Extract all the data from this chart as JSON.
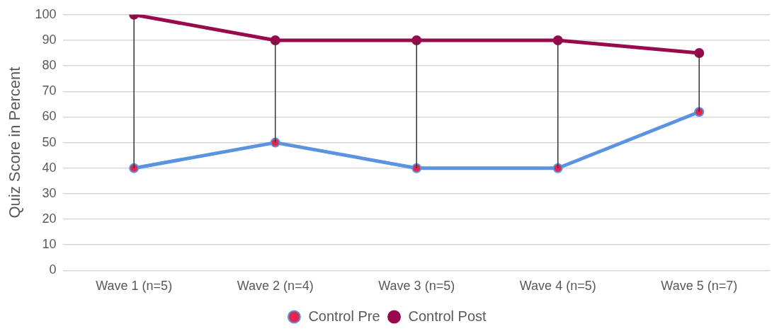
{
  "chart_data": {
    "type": "line",
    "ylabel": "Quiz Score in Percent",
    "categories": [
      "Wave 1 (n=5)",
      "Wave 2 (n=4)",
      "Wave 3 (n=5)",
      "Wave 4 (n=5)",
      "Wave 5 (n=7)"
    ],
    "series": [
      {
        "name": "Control Pre",
        "color": "#5b93e0",
        "values": [
          40,
          50,
          40,
          40,
          62
        ]
      },
      {
        "name": "Control Post",
        "color": "#990a4c",
        "values": [
          100,
          90,
          90,
          90,
          85
        ],
        "errors": [
          [
            40,
            100
          ],
          [
            50,
            90
          ],
          [
            40,
            90
          ],
          [
            40,
            90
          ],
          [
            62,
            85
          ]
        ]
      }
    ],
    "ylim": [
      0,
      100
    ],
    "yticks": [
      0,
      10,
      20,
      30,
      40,
      50,
      60,
      70,
      80,
      90,
      100
    ],
    "grid": "y",
    "legend": "bottom",
    "marker": "circle",
    "line_style": "solid"
  }
}
